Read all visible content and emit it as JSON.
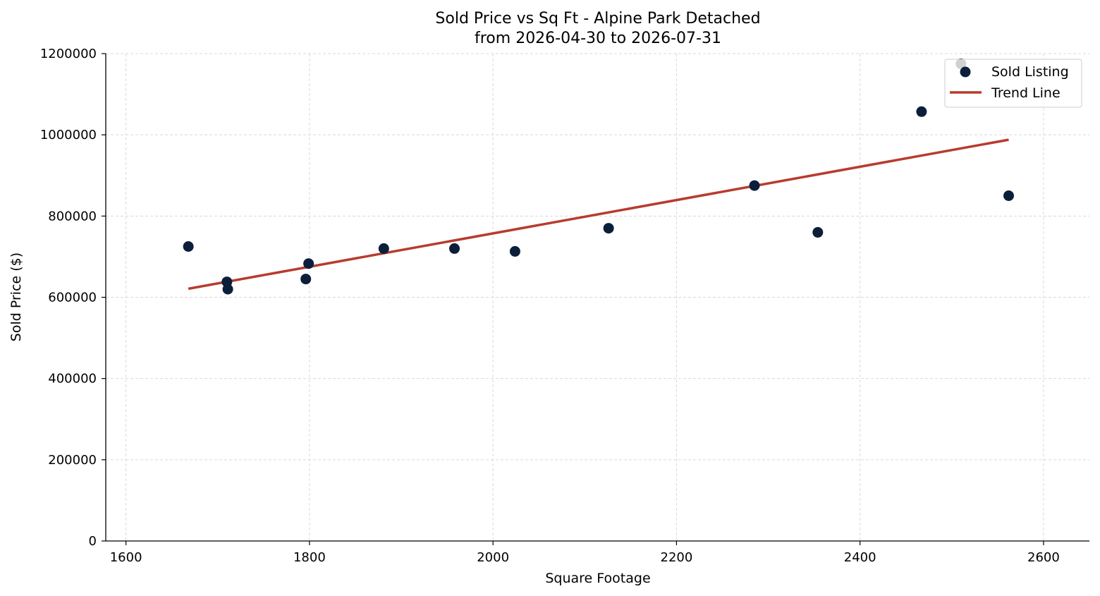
{
  "chart_data": {
    "type": "scatter",
    "title": "Sold Price vs Sq Ft - Alpine Park Detached",
    "subtitle": "from 2026-04-30 to 2026-07-31",
    "xlabel": "Square Footage",
    "ylabel": "Sold Price ($)",
    "xlim": [
      1578,
      2650
    ],
    "ylim": [
      0,
      1200000
    ],
    "xticks": [
      1600,
      1800,
      2000,
      2200,
      2400,
      2600
    ],
    "yticks": [
      0,
      200000,
      400000,
      600000,
      800000,
      1000000,
      1200000
    ],
    "grid": true,
    "legend_position": "top-right",
    "colors": {
      "points": "#0b1f3a",
      "trend": "#b83b2e",
      "grid": "#d9d9d9"
    },
    "series": [
      {
        "name": "Sold Listing",
        "kind": "points",
        "x": [
          1668,
          1710,
          1711,
          1796,
          1799,
          1881,
          1958,
          2024,
          2126,
          2285,
          2354,
          2467,
          2510,
          2562
        ],
        "y": [
          725000,
          638000,
          620000,
          645000,
          683000,
          720000,
          720000,
          713000,
          770000,
          875000,
          760000,
          1057000,
          1175000,
          850000
        ]
      },
      {
        "name": "Trend Line",
        "kind": "line",
        "x": [
          1668,
          2562
        ],
        "y": [
          621000,
          988000
        ]
      }
    ]
  }
}
